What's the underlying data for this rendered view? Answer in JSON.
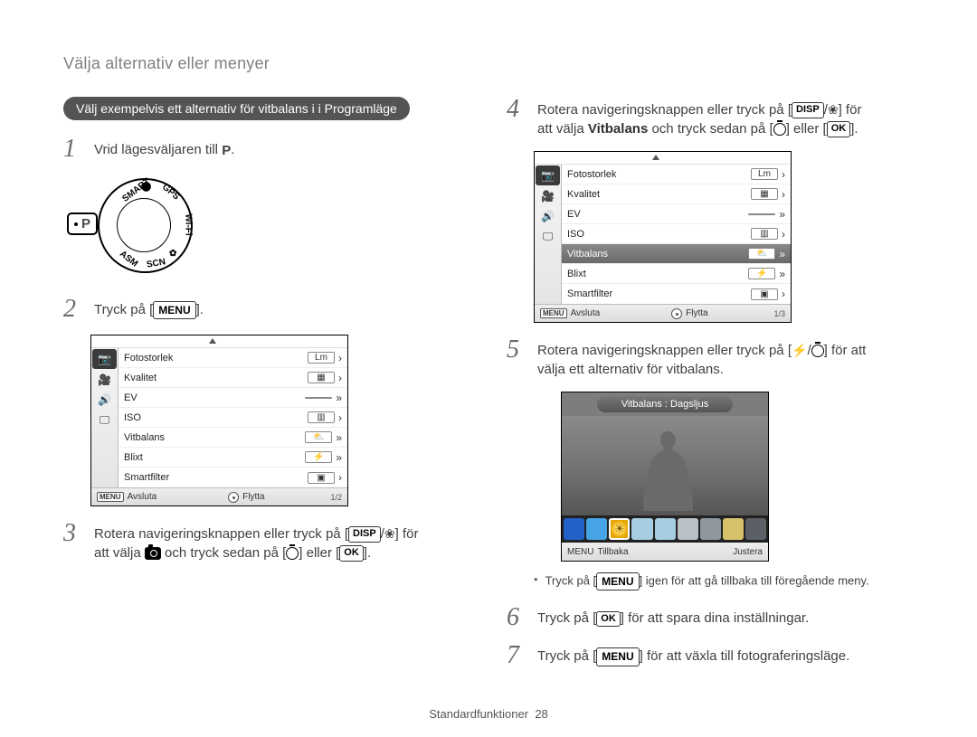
{
  "page": {
    "title": "Välja alternativ eller menyer",
    "footer_label": "Standardfunktioner",
    "footer_page": "28"
  },
  "pill": {
    "text": "Välj exempelvis ett alternativ för vitbalans i i Programläge"
  },
  "steps": {
    "s1": {
      "num": "1",
      "pre": "Vrid lägesväljaren till ",
      "mode": "P",
      "post": "."
    },
    "s2": {
      "num": "2",
      "pre": "Tryck på [",
      "key": "MENU",
      "post": "]."
    },
    "s3": {
      "num": "3",
      "line1_pre": "Rotera navigeringsknappen eller tryck på [",
      "line1_k1": "DISP",
      "line1_sep": "/",
      "line1_post": "] för",
      "line2_pre": "att välja ",
      "line2_mid": " och tryck sedan på [",
      "line2_sep2": "] eller [",
      "line2_ok": "OK",
      "line2_post": "]."
    },
    "s4": {
      "num": "4",
      "line1_pre": "Rotera navigeringsknappen eller tryck på [",
      "line1_k1": "DISP",
      "line1_sep": "/",
      "line1_post": "] för",
      "line2_pre": "att välja ",
      "line2_bold": "Vitbalans",
      "line2_mid": " och tryck sedan på [",
      "line2_sep2": "] eller [",
      "line2_ok": "OK",
      "line2_post": "]."
    },
    "s5": {
      "num": "5",
      "line1_pre": "Rotera navigeringsknappen eller tryck på [",
      "line1_sep": "/",
      "line1_post": "] för att",
      "line2": "välja ett alternativ för vitbalans."
    },
    "s6": {
      "num": "6",
      "pre": "Tryck på [",
      "key": "OK",
      "post": "] för att spara dina inställningar."
    },
    "s7": {
      "num": "7",
      "pre": "Tryck på [",
      "key": "MENU",
      "post": "] för att växla till fotograferingsläge."
    }
  },
  "bullet_note": {
    "pre": "Tryck på [",
    "key": "MENU",
    "post": "] igen för att gå tillbaka till föregående meny."
  },
  "dial": {
    "labels": {
      "smart": "SMART",
      "gps": "GPS",
      "wifi": "Wi-Fi",
      "asm": "ASM",
      "scn": "SCN",
      "sel": "P"
    }
  },
  "menu_items": [
    {
      "label": "Fotostorlek",
      "ind": "Lm",
      "chev": "›"
    },
    {
      "label": "Kvalitet",
      "ind": "▦",
      "chev": "›"
    },
    {
      "label": "EV",
      "ind": "",
      "chev": "»"
    },
    {
      "label": "ISO",
      "ind": "▥",
      "chev": "›"
    },
    {
      "label": "Vitbalans",
      "ind": "⛅",
      "chev": "»"
    },
    {
      "label": "Blixt",
      "ind": "⚡",
      "chev": "»"
    },
    {
      "label": "Smartfilter",
      "ind": "▣",
      "chev": "›"
    }
  ],
  "menu_tabs_icons": [
    "📷",
    "🎥",
    "🔊",
    "🖵"
  ],
  "panel1": {
    "footer_left": "Avsluta",
    "footer_right": "Flytta",
    "page_ind": "1/2",
    "selected_index": -1
  },
  "panel2": {
    "footer_left": "Avsluta",
    "footer_right": "Flytta",
    "page_ind": "1/3",
    "selected_index": 4
  },
  "wb": {
    "title": "Vitbalans : Dagsljus",
    "footer_left": "Tillbaka",
    "footer_right": "Justera",
    "items_bg": [
      "#2262c9",
      "#46a3e6",
      "#e6c63c",
      "#a7cde0",
      "#a7cde0",
      "#b9c0c6",
      "#8f979e",
      "#d7c06a",
      "#5b6066"
    ],
    "selected_index": 2
  },
  "colors": {
    "pill_bg": "#545454",
    "step_num": "#6a6a6a",
    "text": "#404040"
  }
}
